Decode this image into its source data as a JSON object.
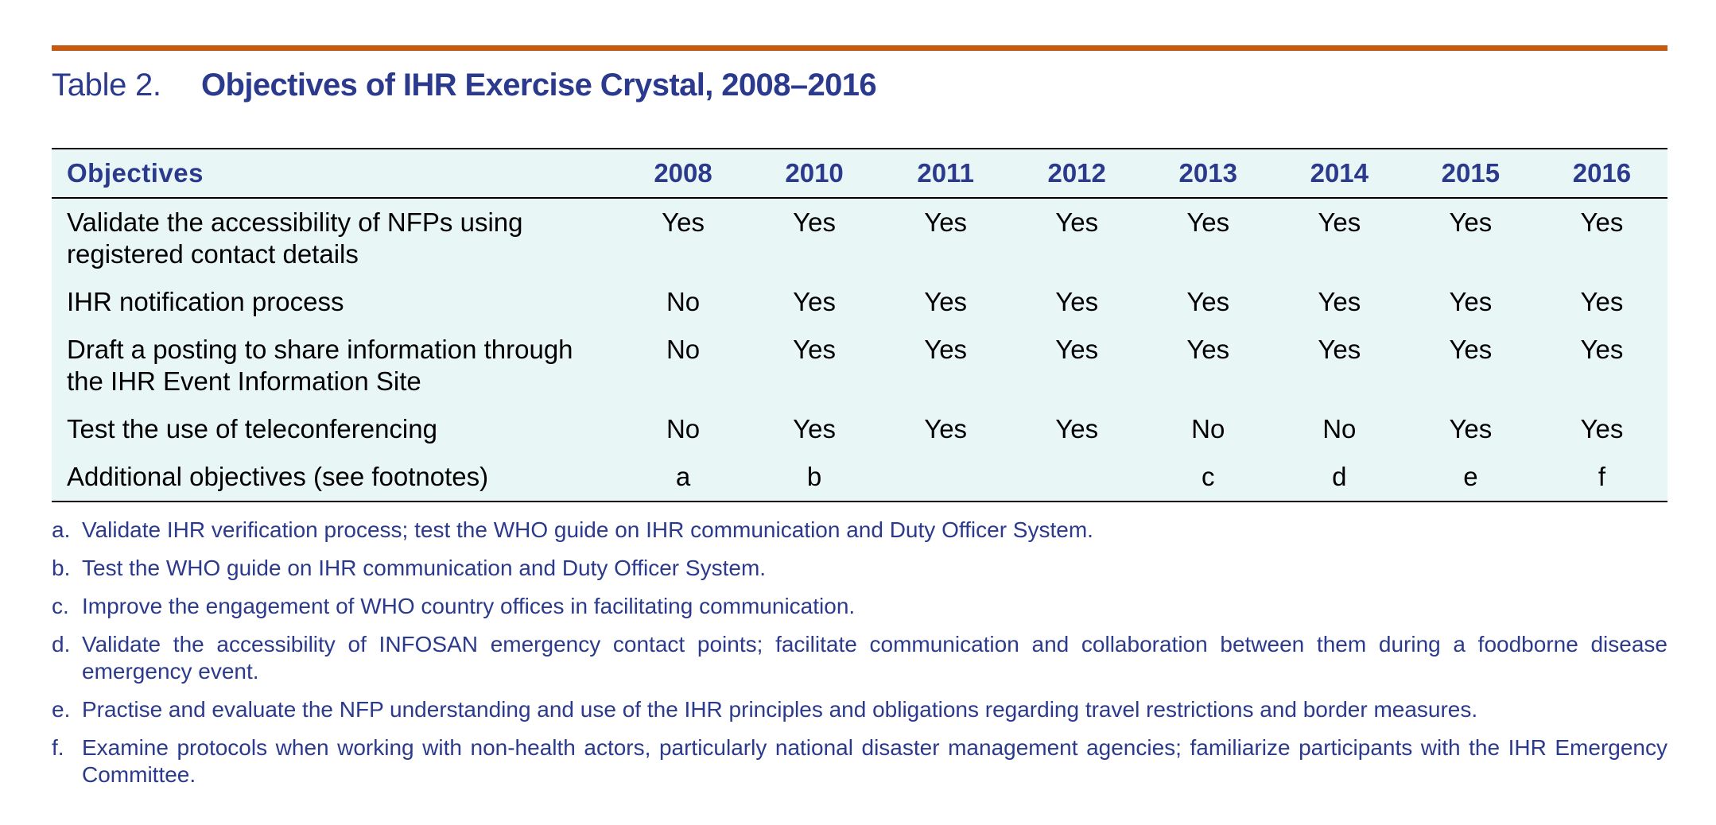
{
  "caption": {
    "number": "Table 2.",
    "title": "Objectives of IHR Exercise Crystal, 2008–2016"
  },
  "colors": {
    "accent_rule": "#c55a11",
    "heading_blue": "#2b3a8c",
    "table_background": "#e9f6f6"
  },
  "table": {
    "headers": [
      "Objectives",
      "2008",
      "2010",
      "2011",
      "2012",
      "2013",
      "2014",
      "2015",
      "2016"
    ],
    "rows": [
      {
        "objective": "Validate the accessibility of NFPs using registered contact details",
        "values": [
          "Yes",
          "Yes",
          "Yes",
          "Yes",
          "Yes",
          "Yes",
          "Yes",
          "Yes"
        ]
      },
      {
        "objective": "IHR notification process",
        "values": [
          "No",
          "Yes",
          "Yes",
          "Yes",
          "Yes",
          "Yes",
          "Yes",
          "Yes"
        ]
      },
      {
        "objective": "Draft a posting to share information through the IHR Event Information Site",
        "values": [
          "No",
          "Yes",
          "Yes",
          "Yes",
          "Yes",
          "Yes",
          "Yes",
          "Yes"
        ]
      },
      {
        "objective": "Test the use of teleconferencing",
        "values": [
          "No",
          "Yes",
          "Yes",
          "Yes",
          "No",
          "No",
          "Yes",
          "Yes"
        ]
      },
      {
        "objective": "Additional objectives (see footnotes)",
        "values": [
          "a",
          "b",
          "",
          "",
          "c",
          "d",
          "e",
          "f"
        ]
      }
    ]
  },
  "footnotes": [
    {
      "letter": "a.",
      "text": "Validate IHR verification process; test the WHO guide on IHR communication and Duty Officer System."
    },
    {
      "letter": "b.",
      "text": "Test the WHO guide on IHR communication and Duty Officer System."
    },
    {
      "letter": "c.",
      "text": "Improve the engagement of WHO country offices in facilitating communication."
    },
    {
      "letter": "d.",
      "text": "Validate the accessibility of INFOSAN emergency contact points; facilitate communication and collaboration between them during a foodborne disease emergency event."
    },
    {
      "letter": "e.",
      "text": "Practise and evaluate the NFP understanding and use of the IHR principles and obligations regarding travel restrictions and border measures."
    },
    {
      "letter": "f.",
      "text": "Examine protocols when working with non-health actors, particularly national disaster management agencies; familiarize participants with the IHR Emergency Committee."
    }
  ]
}
